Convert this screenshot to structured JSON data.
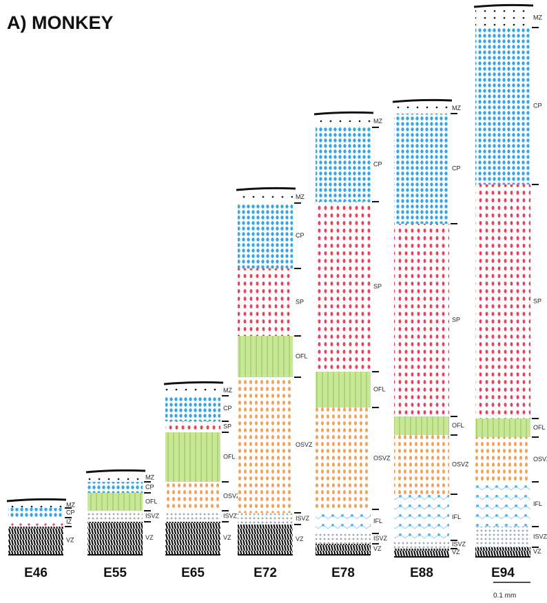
{
  "title": "A) MONKEY",
  "columns": [
    {
      "label": "E46",
      "layers": [
        "MZ",
        "CP",
        "IZ",
        "VZ"
      ]
    },
    {
      "label": "E55",
      "layers": [
        "MZ",
        "CP",
        "OFL",
        "ISVZ",
        "VZ"
      ]
    },
    {
      "label": "E65",
      "layers": [
        "MZ",
        "CP",
        "SP",
        "OFL",
        "OSVZ",
        "ISVZ",
        "VZ"
      ]
    },
    {
      "label": "E72",
      "layers": [
        "MZ",
        "CP",
        "SP",
        "OFL",
        "OSVZ",
        "ISVZ",
        "VZ"
      ]
    },
    {
      "label": "E78",
      "layers": [
        "MZ",
        "CP",
        "SP",
        "OFL",
        "OSVZ",
        "IFL",
        "ISVZ",
        "VZ"
      ]
    },
    {
      "label": "E88",
      "layers": [
        "MZ",
        "CP",
        "SP",
        "OFL",
        "OSVZ",
        "IFL",
        "ISVZ",
        "VZ"
      ]
    },
    {
      "label": "E94",
      "layers": [
        "MZ",
        "CP",
        "SP",
        "OFL",
        "OSVZ",
        "IFL",
        "ISVZ",
        "VZ"
      ]
    }
  ],
  "scale_label": "0.1 mm"
}
